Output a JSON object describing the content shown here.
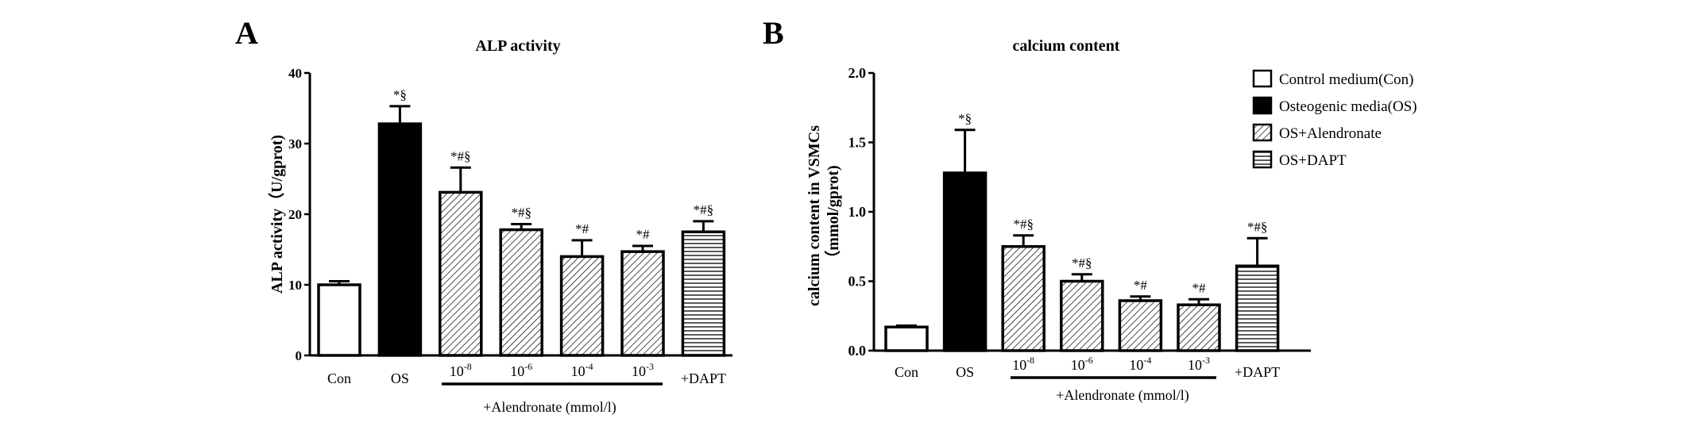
{
  "chart_data": [
    {
      "type": "bar",
      "panel_label": "A",
      "title": "ALP activity",
      "ylabel": "ALP activity（U/gprot)",
      "xlabel": "",
      "ylim": [
        0,
        40
      ],
      "yticks": [
        0,
        10,
        20,
        30,
        40
      ],
      "ytick_labels": [
        "0",
        "10",
        "20",
        "30",
        "40"
      ],
      "categories": [
        {
          "label": "Con",
          "sup": ""
        },
        {
          "label": "OS",
          "sup": ""
        },
        {
          "label": "10",
          "sup": "-8"
        },
        {
          "label": "10",
          "sup": "-6"
        },
        {
          "label": "10",
          "sup": "-4"
        },
        {
          "label": "10",
          "sup": "-3"
        },
        {
          "label": "+DAPT",
          "sup": ""
        }
      ],
      "values": [
        10.0,
        32.8,
        23.1,
        17.8,
        14.0,
        14.7,
        17.5
      ],
      "errors": [
        0.5,
        2.5,
        3.5,
        0.8,
        2.3,
        0.8,
        1.5
      ],
      "annotations": [
        "",
        "*§",
        "*#§",
        "*#§",
        "*#",
        "*#",
        "*#§"
      ],
      "fills": [
        "white",
        "black",
        "diag",
        "diag",
        "diag",
        "diag",
        "horiz"
      ],
      "group_label": "+Alendronate (mmol/l)",
      "grid": false
    },
    {
      "type": "bar",
      "panel_label": "B",
      "title": "calcium content",
      "ylabel": "calcium content in VSMCs",
      "ylabel2": "（mmol/gprot)",
      "xlabel": "",
      "ylim": [
        0,
        2.0
      ],
      "yticks": [
        0,
        0.5,
        1.0,
        1.5,
        2.0
      ],
      "ytick_labels": [
        "0.0",
        "0.5",
        "1.0",
        "1.5",
        "2.0"
      ],
      "categories": [
        {
          "label": "Con",
          "sup": ""
        },
        {
          "label": "OS",
          "sup": ""
        },
        {
          "label": "10",
          "sup": "-8"
        },
        {
          "label": "10",
          "sup": "-6"
        },
        {
          "label": "10",
          "sup": "-4"
        },
        {
          "label": "10",
          "sup": "-3"
        },
        {
          "label": "+DAPT",
          "sup": ""
        }
      ],
      "values": [
        0.17,
        1.28,
        0.75,
        0.5,
        0.36,
        0.33,
        0.61
      ],
      "errors": [
        0.01,
        0.31,
        0.08,
        0.05,
        0.03,
        0.04,
        0.2
      ],
      "annotations": [
        "",
        "*§",
        "*#§",
        "*#§",
        "*#",
        "*#",
        "*#§"
      ],
      "fills": [
        "white",
        "black",
        "diag",
        "diag",
        "diag",
        "diag",
        "horiz"
      ],
      "group_label": "+Alendronate (mmol/l)",
      "legend_position": "top-right",
      "legend": [
        {
          "label": "Control medium(Con)",
          "fill": "white"
        },
        {
          "label": "Osteogenic media(OS)",
          "fill": "black"
        },
        {
          "label": "OS+Alendronate",
          "fill": "diag"
        },
        {
          "label": "OS+DAPT",
          "fill": "horiz"
        }
      ],
      "grid": false
    }
  ]
}
